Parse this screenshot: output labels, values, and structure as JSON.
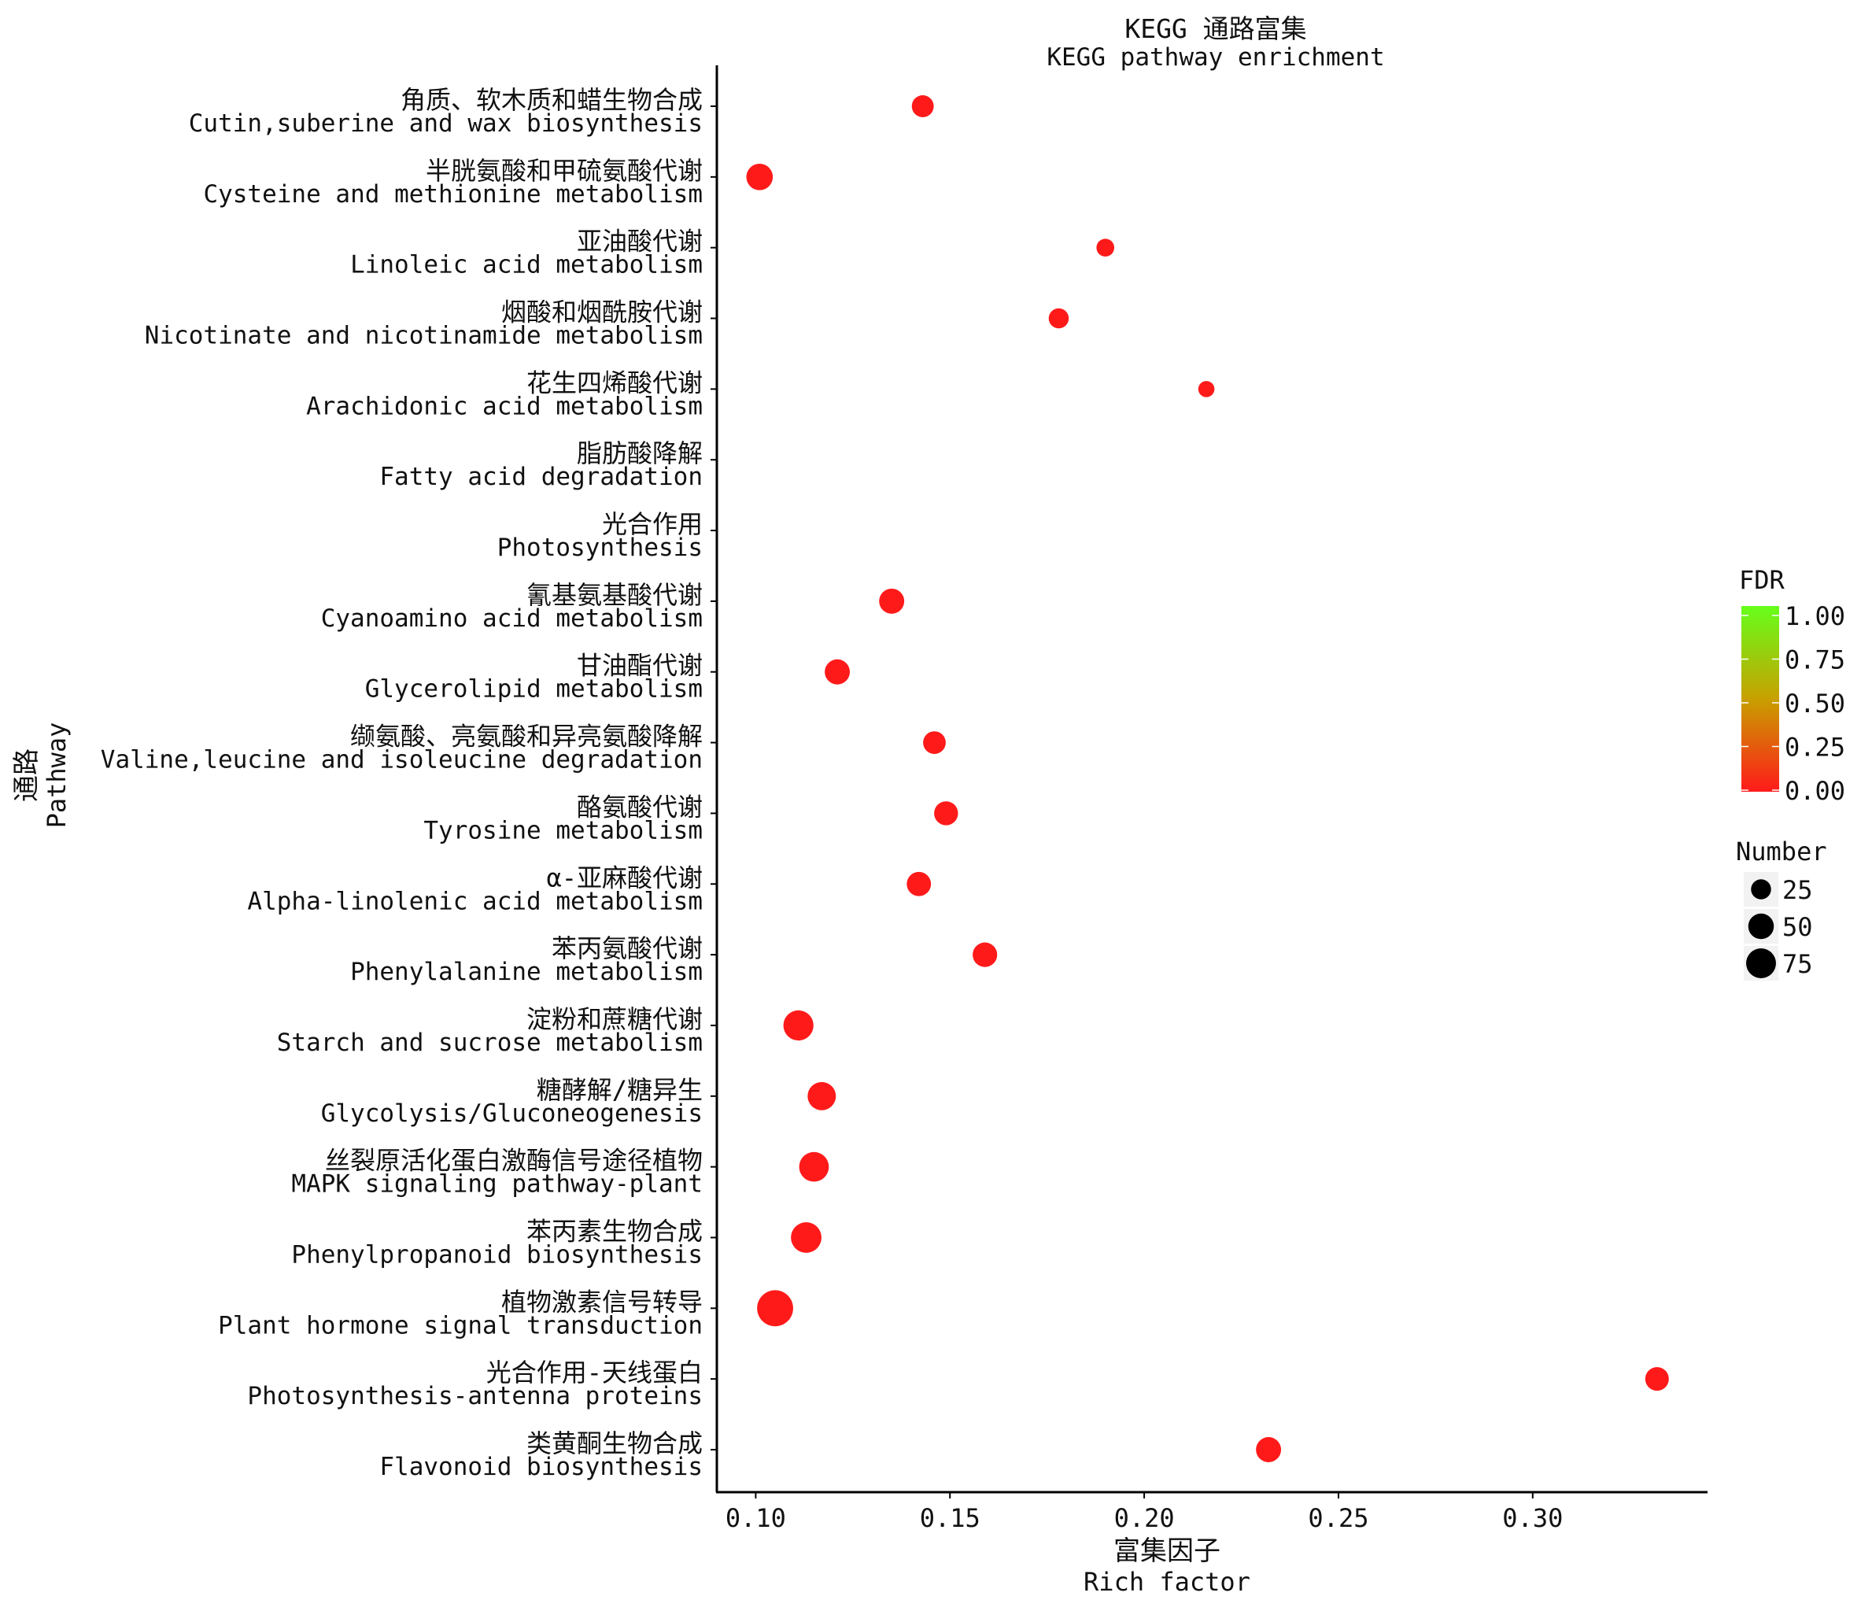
{
  "chart_data": {
    "type": "scatter",
    "title": "KEGG 通路富集",
    "subtitle": "KEGG pathway enrichment",
    "xlabel": "富集因子",
    "xlabel_en": "Rich factor",
    "ylabel": "通路",
    "ylabel_en": "Pathway",
    "xlim": [
      0.09,
      0.345
    ],
    "xticks": [
      0.1,
      0.15,
      0.2,
      0.25,
      0.3
    ],
    "xtick_labels": [
      "0.10",
      "0.15",
      "0.20",
      "0.25",
      "0.30"
    ],
    "grid": false,
    "legend_placement": "right",
    "color_legend": {
      "title": "FDR",
      "labels": [
        "1.00",
        "0.75",
        "0.50",
        "0.25",
        "0.00"
      ],
      "low_color": "#ff1a1a",
      "mid_color": "#c8a000",
      "high_color": "#66ff1a"
    },
    "size_legend": {
      "title": "Number",
      "values": [
        25,
        50,
        75
      ],
      "labels": [
        "25",
        "50",
        "75"
      ]
    },
    "pathways": [
      {
        "cn": "角质、软木质和蜡生物合成",
        "en": "Cutin,suberine and wax biosynthesis",
        "rich_factor": 0.143,
        "number": 20,
        "fdr": 0.0
      },
      {
        "cn": "半胱氨酸和甲硫氨酸代谢",
        "en": "Cysteine and methionine metabolism",
        "rich_factor": 0.101,
        "number": 35,
        "fdr": 0.0
      },
      {
        "cn": "亚油酸代谢",
        "en": "Linoleic acid metabolism",
        "rich_factor": 0.19,
        "number": 10,
        "fdr": 0.0
      },
      {
        "cn": "烟酸和烟酰胺代谢",
        "en": "Nicotinate and nicotinamide metabolism",
        "rich_factor": 0.178,
        "number": 15,
        "fdr": 0.0
      },
      {
        "cn": "花生四烯酸代谢",
        "en": "Arachidonic acid metabolism",
        "rich_factor": 0.216,
        "number": 7,
        "fdr": 0.0
      },
      {
        "cn": "脂肪酸降解",
        "en": "Fatty acid degradation",
        "rich_factor": null,
        "number": null,
        "fdr": null
      },
      {
        "cn": "光合作用",
        "en": "Photosynthesis",
        "rich_factor": null,
        "number": null,
        "fdr": null
      },
      {
        "cn": "氰基氨基酸代谢",
        "en": "Cyanoamino acid metabolism",
        "rich_factor": 0.135,
        "number": 30,
        "fdr": 0.0
      },
      {
        "cn": "甘油酯代谢",
        "en": "Glycerolipid metabolism",
        "rich_factor": 0.121,
        "number": 30,
        "fdr": 0.0
      },
      {
        "cn": "缬氨酸、亮氨酸和异亮氨酸降解",
        "en": "Valine,leucine and isoleucine degradation",
        "rich_factor": 0.146,
        "number": 22,
        "fdr": 0.0
      },
      {
        "cn": "酪氨酸代谢",
        "en": "Tyrosine metabolism",
        "rich_factor": 0.149,
        "number": 26,
        "fdr": 0.0
      },
      {
        "cn": "α-亚麻酸代谢",
        "en": "Alpha-linolenic acid metabolism",
        "rich_factor": 0.142,
        "number": 27,
        "fdr": 0.0
      },
      {
        "cn": "苯丙氨酸代谢",
        "en": "Phenylalanine metabolism",
        "rich_factor": 0.159,
        "number": 28,
        "fdr": 0.0
      },
      {
        "cn": "淀粉和蔗糖代谢",
        "en": "Starch and sucrose metabolism",
        "rich_factor": 0.111,
        "number": 50,
        "fdr": 0.0
      },
      {
        "cn": "糖酵解/糖异生",
        "en": "Glycolysis/Gluconeogenesis",
        "rich_factor": 0.117,
        "number": 42,
        "fdr": 0.0
      },
      {
        "cn": "丝裂原活化蛋白激酶信号途径植物",
        "en": "MAPK signaling pathway-plant",
        "rich_factor": 0.115,
        "number": 48,
        "fdr": 0.0
      },
      {
        "cn": "苯丙素生物合成",
        "en": "Phenylpropanoid biosynthesis",
        "rich_factor": 0.113,
        "number": 52,
        "fdr": 0.0
      },
      {
        "cn": "植物激素信号转导",
        "en": "Plant hormone signal transduction",
        "rich_factor": 0.105,
        "number": 80,
        "fdr": 0.0
      },
      {
        "cn": "光合作用-天线蛋白",
        "en": "Photosynthesis-antenna proteins",
        "rich_factor": 0.332,
        "number": 25,
        "fdr": 0.0
      },
      {
        "cn": "类黄酮生物合成",
        "en": "Flavonoid biosynthesis",
        "rich_factor": 0.232,
        "number": 30,
        "fdr": 0.0
      }
    ]
  }
}
